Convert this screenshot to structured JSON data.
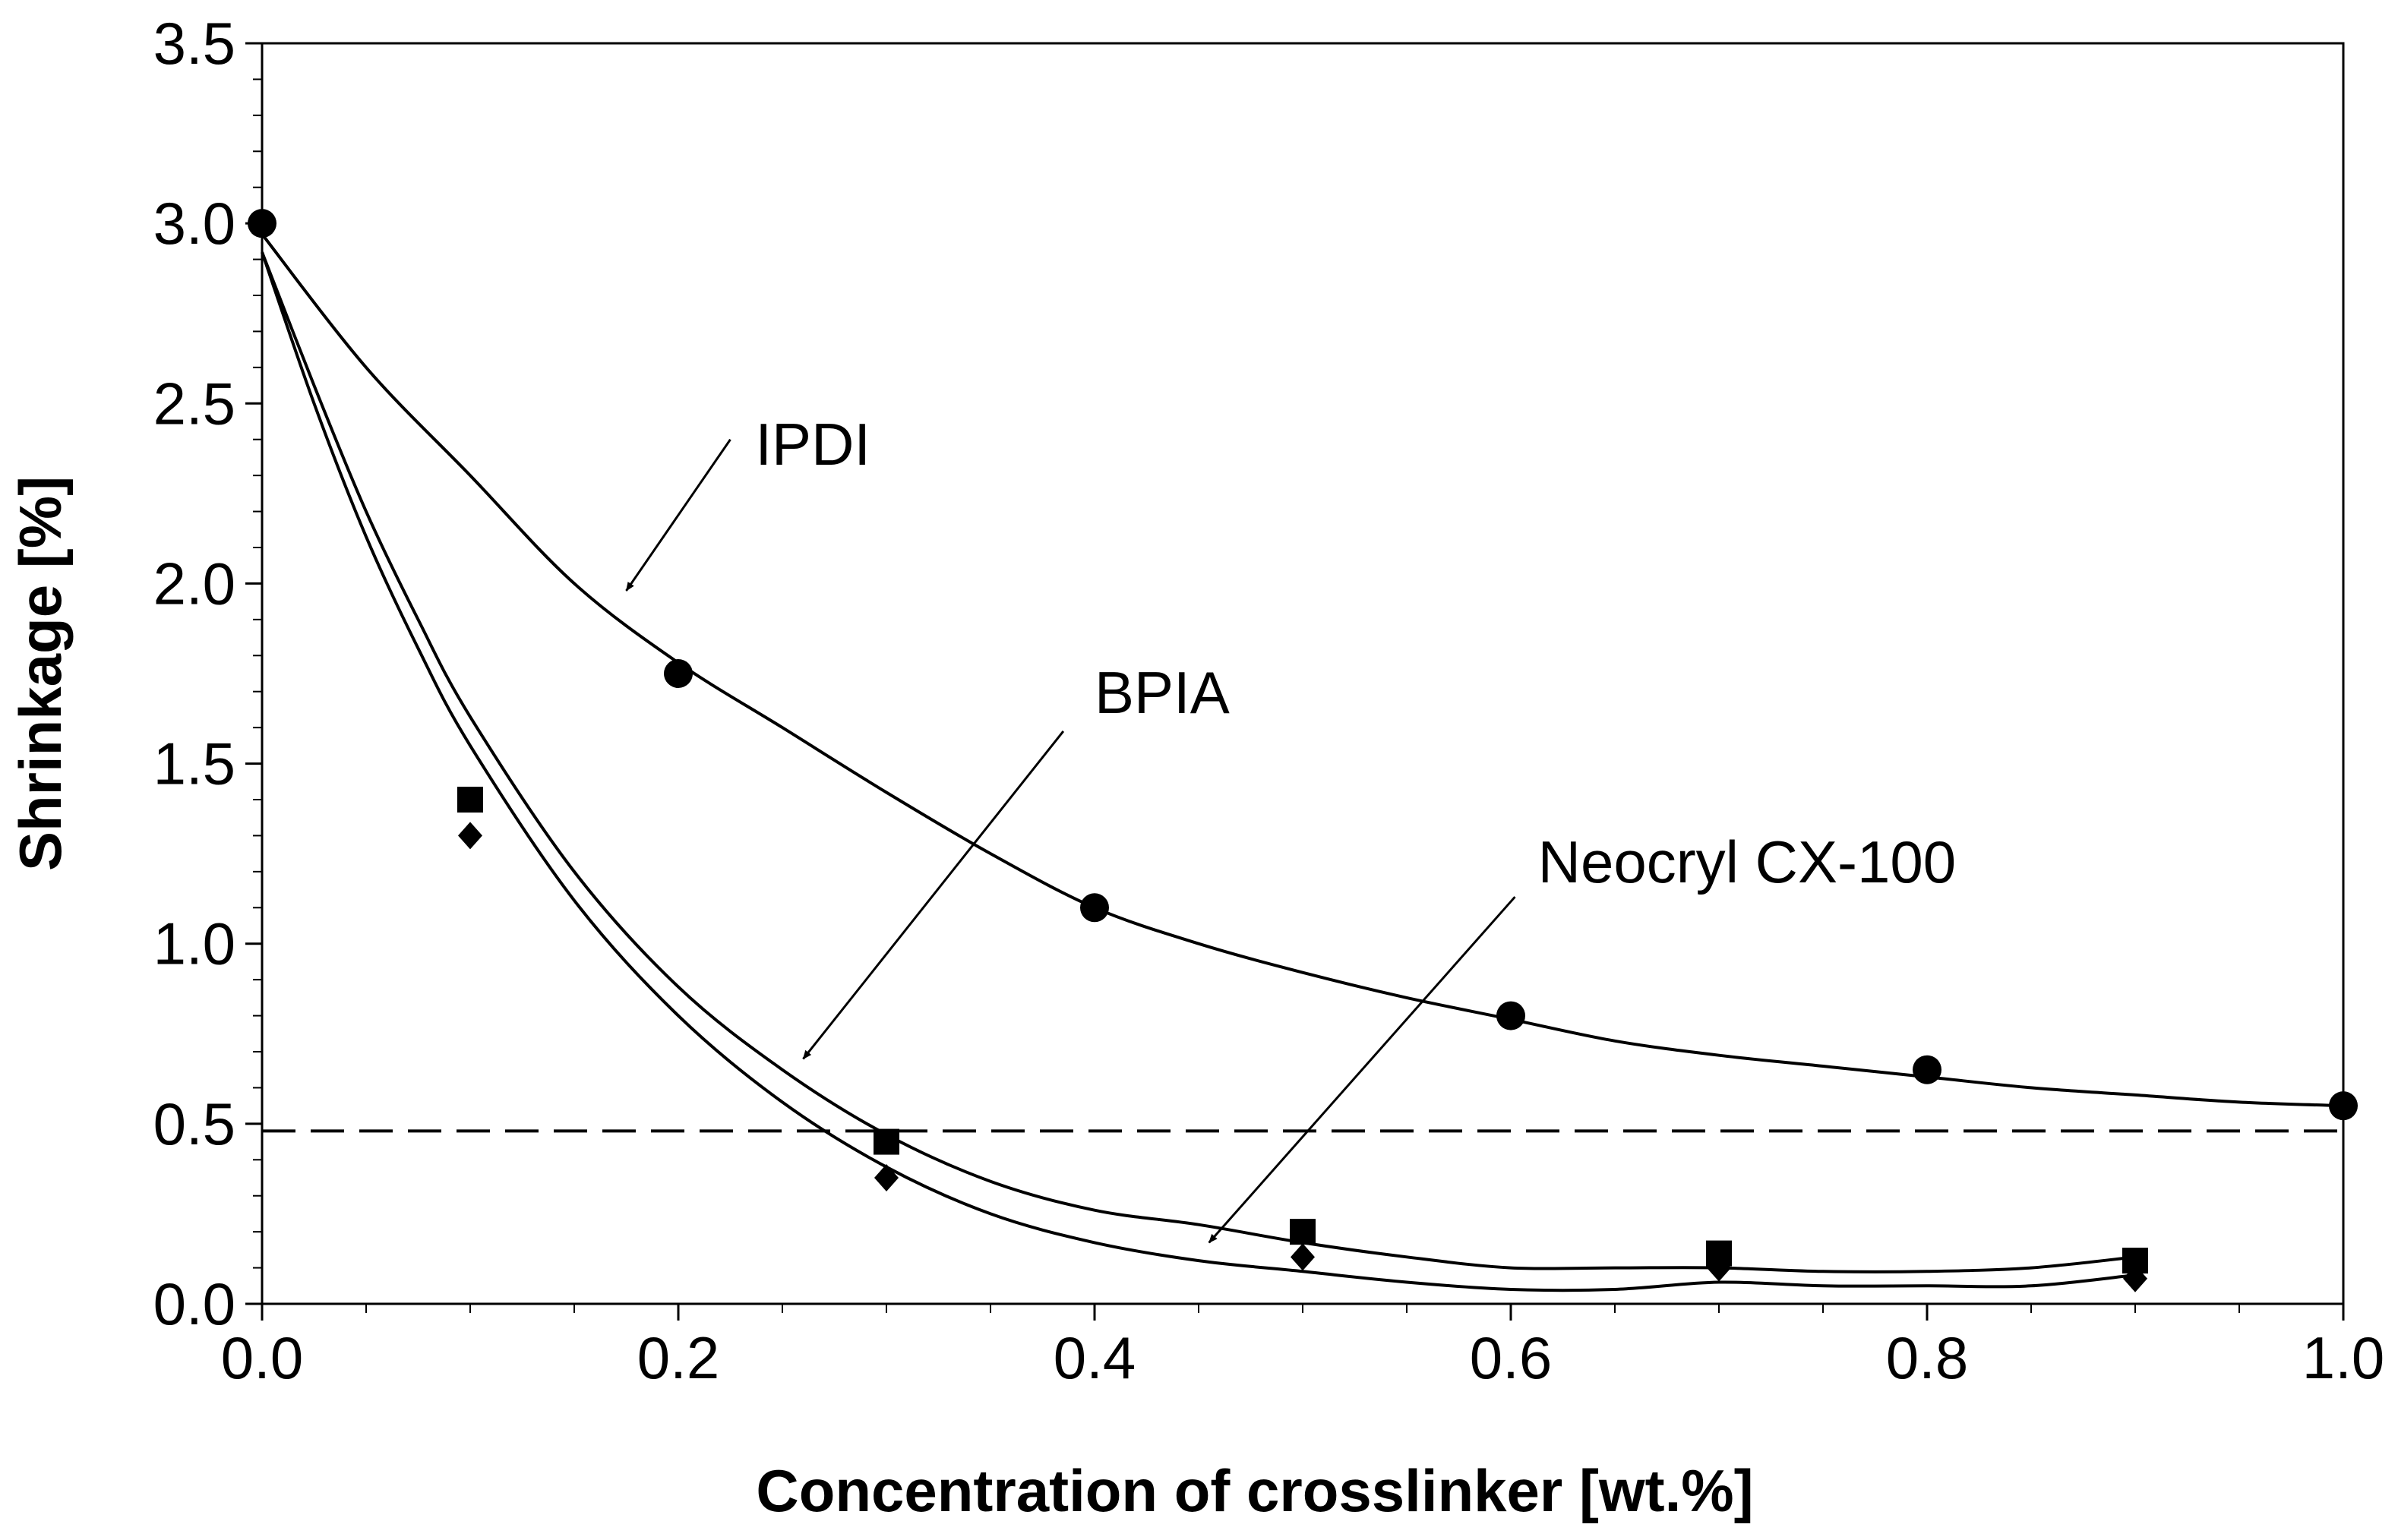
{
  "chart_data": {
    "type": "scatter",
    "title": "",
    "xlabel": "Concentration of crosslinker [wt.%]",
    "ylabel": "Shrinkage [%]",
    "xlim": [
      0.0,
      1.0
    ],
    "ylim": [
      0.0,
      3.5
    ],
    "x_ticks": [
      0.0,
      0.2,
      0.4,
      0.6,
      0.8,
      1.0
    ],
    "x_tick_labels": [
      "0.0",
      "0.2",
      "0.4",
      "0.6",
      "0.8",
      "1.0"
    ],
    "y_ticks": [
      0.0,
      0.5,
      1.0,
      1.5,
      2.0,
      2.5,
      3.0,
      3.5
    ],
    "y_tick_labels": [
      "0.0",
      "0.5",
      "1.0",
      "1.5",
      "2.0",
      "2.5",
      "3.0",
      "3.5"
    ],
    "grid": false,
    "reference_line": {
      "y": 0.48,
      "style": "dashed"
    },
    "series": [
      {
        "name": "IPDI",
        "marker": "circle",
        "points": [
          [
            0.0,
            3.0
          ],
          [
            0.2,
            1.75
          ],
          [
            0.4,
            1.1
          ],
          [
            0.6,
            0.8
          ],
          [
            0.8,
            0.65
          ],
          [
            1.0,
            0.55
          ]
        ],
        "fit": [
          [
            0.0,
            2.97
          ],
          [
            0.05,
            2.6
          ],
          [
            0.1,
            2.3
          ],
          [
            0.15,
            2.0
          ],
          [
            0.2,
            1.78
          ],
          [
            0.25,
            1.6
          ],
          [
            0.3,
            1.42
          ],
          [
            0.35,
            1.25
          ],
          [
            0.4,
            1.1
          ],
          [
            0.45,
            1.0
          ],
          [
            0.5,
            0.92
          ],
          [
            0.55,
            0.85
          ],
          [
            0.6,
            0.79
          ],
          [
            0.65,
            0.73
          ],
          [
            0.7,
            0.69
          ],
          [
            0.75,
            0.66
          ],
          [
            0.8,
            0.63
          ],
          [
            0.85,
            0.6
          ],
          [
            0.9,
            0.58
          ],
          [
            0.95,
            0.56
          ],
          [
            1.0,
            0.55
          ]
        ]
      },
      {
        "name": "BPIA",
        "marker": "square",
        "points": [
          [
            0.1,
            1.4
          ],
          [
            0.3,
            0.45
          ],
          [
            0.5,
            0.2
          ],
          [
            0.7,
            0.14
          ],
          [
            0.9,
            0.12
          ]
        ],
        "fit": [
          [
            0.0,
            2.92
          ],
          [
            0.025,
            2.55
          ],
          [
            0.05,
            2.2
          ],
          [
            0.075,
            1.9
          ],
          [
            0.1,
            1.63
          ],
          [
            0.15,
            1.2
          ],
          [
            0.2,
            0.88
          ],
          [
            0.25,
            0.65
          ],
          [
            0.3,
            0.47
          ],
          [
            0.35,
            0.34
          ],
          [
            0.4,
            0.26
          ],
          [
            0.45,
            0.22
          ],
          [
            0.5,
            0.17
          ],
          [
            0.55,
            0.13
          ],
          [
            0.6,
            0.1
          ],
          [
            0.65,
            0.1
          ],
          [
            0.7,
            0.1
          ],
          [
            0.75,
            0.09
          ],
          [
            0.8,
            0.09
          ],
          [
            0.85,
            0.1
          ],
          [
            0.9,
            0.13
          ]
        ]
      },
      {
        "name": "Neocryl CX-100",
        "marker": "diamond",
        "points": [
          [
            0.1,
            1.3
          ],
          [
            0.3,
            0.35
          ],
          [
            0.5,
            0.13
          ],
          [
            0.7,
            0.1
          ],
          [
            0.9,
            0.07
          ]
        ],
        "fit": [
          [
            0.0,
            2.92
          ],
          [
            0.025,
            2.5
          ],
          [
            0.05,
            2.13
          ],
          [
            0.075,
            1.82
          ],
          [
            0.1,
            1.55
          ],
          [
            0.15,
            1.12
          ],
          [
            0.2,
            0.8
          ],
          [
            0.25,
            0.56
          ],
          [
            0.3,
            0.38
          ],
          [
            0.35,
            0.25
          ],
          [
            0.4,
            0.17
          ],
          [
            0.45,
            0.12
          ],
          [
            0.5,
            0.09
          ],
          [
            0.55,
            0.06
          ],
          [
            0.6,
            0.04
          ],
          [
            0.65,
            0.04
          ],
          [
            0.7,
            0.06
          ],
          [
            0.75,
            0.05
          ],
          [
            0.8,
            0.05
          ],
          [
            0.85,
            0.05
          ],
          [
            0.9,
            0.08
          ]
        ]
      }
    ],
    "annotations": [
      {
        "text": "IPDI",
        "series": "IPDI",
        "label_at": [
          0.237,
          2.33
        ],
        "arrow_from": [
          0.225,
          2.4
        ],
        "arrow_to": [
          0.175,
          1.98
        ]
      },
      {
        "text": "BPIA",
        "series": "BPIA",
        "label_at": [
          0.4,
          1.64
        ],
        "arrow_from": [
          0.385,
          1.59
        ],
        "arrow_to": [
          0.26,
          0.68
        ]
      },
      {
        "text": "Neocryl CX-100",
        "series": "Neocryl CX-100",
        "label_at": [
          0.613,
          1.17
        ],
        "arrow_from": [
          0.602,
          1.13
        ],
        "arrow_to": [
          0.455,
          0.17
        ]
      }
    ]
  }
}
